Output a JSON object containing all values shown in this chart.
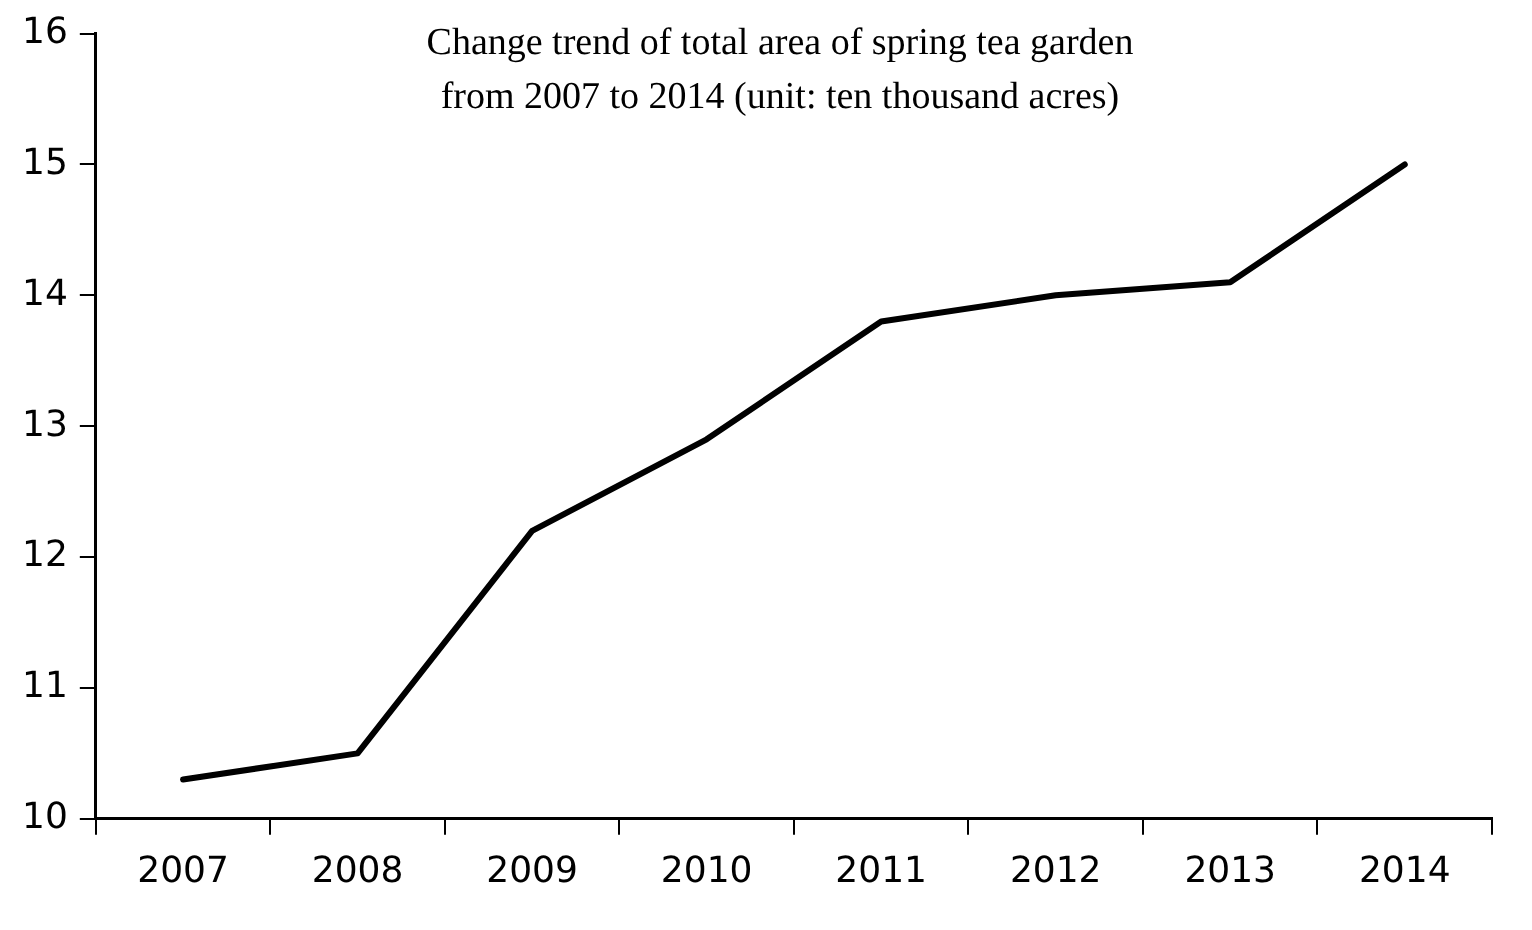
{
  "chart_data": {
    "type": "line",
    "title": "Change trend of total area of spring tea garden\nfrom 2007 to 2014 (unit: ten thousand acres)",
    "categories": [
      "2007",
      "2008",
      "2009",
      "2010",
      "2011",
      "2012",
      "2013",
      "2014"
    ],
    "values": [
      10.3,
      10.5,
      12.2,
      12.9,
      13.8,
      14.0,
      14.1,
      15.0
    ],
    "color": "#000000",
    "ylim": [
      10,
      16
    ],
    "yticks": [
      10,
      11,
      12,
      13,
      14,
      15,
      16
    ],
    "grid": false,
    "legend": false,
    "marker": "none",
    "line_style": "solid"
  }
}
